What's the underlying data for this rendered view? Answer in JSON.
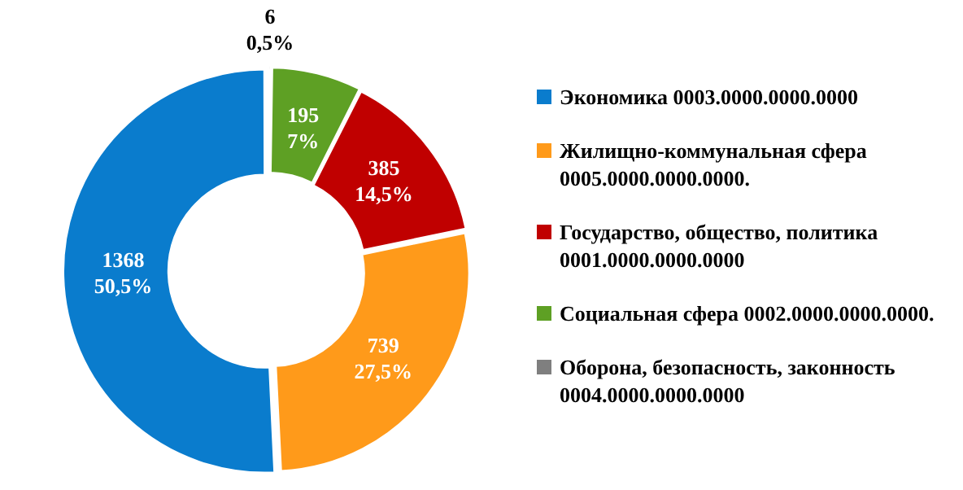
{
  "chart_data": {
    "type": "donut",
    "categories": [
      "Экономика 0003.0000.0000.0000",
      "Жилищно-коммунальная сфера 0005.0000.0000.0000.",
      "Государство, общество, политика 0001.0000.0000.0000",
      "Социальная сфера 0002.0000.0000.0000.",
      "Оборона, безопасность, законность 0004.0000.0000.0000"
    ],
    "values": [
      1368,
      739,
      385,
      195,
      6
    ],
    "value_labels": [
      "1368\n50,5%",
      "739\n27,5%",
      "385\n14,5%",
      "195\n7%",
      "6\n0,5%"
    ],
    "colors": [
      "#0a7ccd",
      "#ff9a1a",
      "#c00000",
      "#5ea024",
      "#7f7f7f"
    ],
    "legend": "right"
  }
}
